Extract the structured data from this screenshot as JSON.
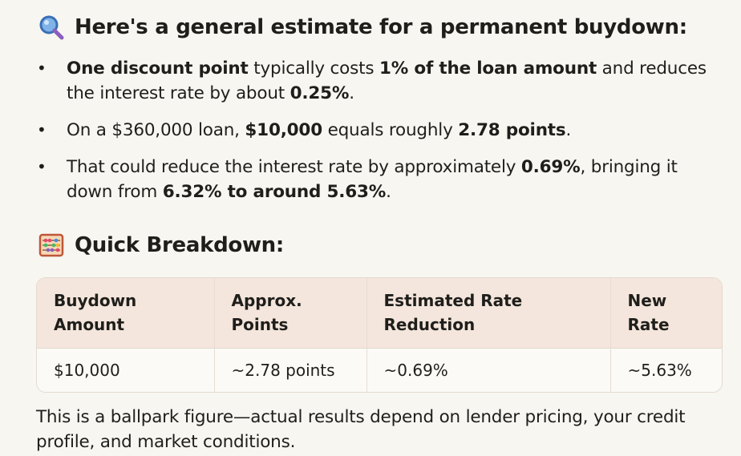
{
  "section1": {
    "icon": "magnifying-glass-icon",
    "title": "Here's a general estimate for a permanent buydown:"
  },
  "bullets": [
    {
      "parts": [
        {
          "text": "One discount point",
          "bold": true
        },
        {
          "text": " typically costs ",
          "bold": false
        },
        {
          "text": "1% of the loan amount",
          "bold": true
        },
        {
          "text": " and reduces the interest rate by about ",
          "bold": false
        },
        {
          "text": "0.25%",
          "bold": true
        },
        {
          "text": ".",
          "bold": false
        }
      ]
    },
    {
      "parts": [
        {
          "text": "On a $360,000 loan, ",
          "bold": false
        },
        {
          "text": "$10,000",
          "bold": true
        },
        {
          "text": " equals roughly ",
          "bold": false
        },
        {
          "text": "2.78 points",
          "bold": true
        },
        {
          "text": ".",
          "bold": false
        }
      ]
    },
    {
      "parts": [
        {
          "text": "That could reduce the interest rate by approximately ",
          "bold": false
        },
        {
          "text": "0.69%",
          "bold": true
        },
        {
          "text": ", bringing it down from ",
          "bold": false
        },
        {
          "text": "6.32% to around 5.63%",
          "bold": true
        },
        {
          "text": ".",
          "bold": false
        }
      ]
    }
  ],
  "section2": {
    "icon": "abacus-icon",
    "title": "Quick Breakdown:"
  },
  "table": {
    "headers": [
      [
        "Buydown",
        "Amount"
      ],
      [
        "Approx.",
        "Points"
      ],
      [
        "Estimated Rate",
        "Reduction"
      ],
      [
        "New",
        "Rate"
      ]
    ],
    "rows": [
      [
        "$10,000",
        "~2.78 points",
        "~0.69%",
        "~5.63%"
      ]
    ]
  },
  "footnote": "This is a ballpark figure—actual results depend on lender pricing, your credit profile, and market conditions."
}
